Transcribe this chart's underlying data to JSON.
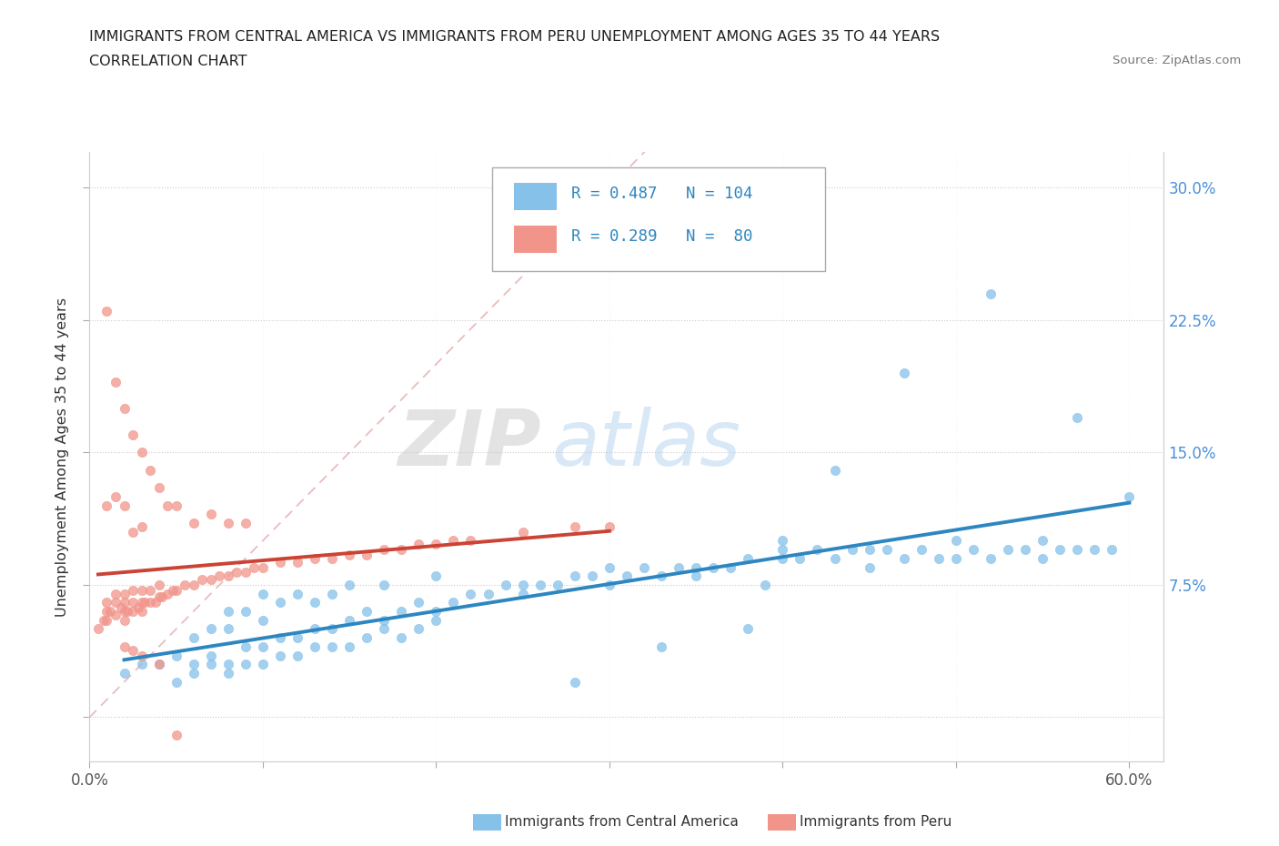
{
  "title_line1": "IMMIGRANTS FROM CENTRAL AMERICA VS IMMIGRANTS FROM PERU UNEMPLOYMENT AMONG AGES 35 TO 44 YEARS",
  "title_line2": "CORRELATION CHART",
  "source_text": "Source: ZipAtlas.com",
  "ylabel": "Unemployment Among Ages 35 to 44 years",
  "watermark_ZIP": "ZIP",
  "watermark_atlas": "atlas",
  "legend_label1": "Immigrants from Central America",
  "legend_label2": "Immigrants from Peru",
  "R1": 0.487,
  "N1": 104,
  "R2": 0.289,
  "N2": 80,
  "color1": "#85C1E9",
  "color2": "#F1948A",
  "line1_color": "#2E86C1",
  "line2_color": "#CB4335",
  "diag_color": "#E8B4B8",
  "xlim": [
    0.0,
    0.62
  ],
  "ylim": [
    -0.025,
    0.32
  ],
  "xtick_vals": [
    0.0,
    0.1,
    0.2,
    0.3,
    0.4,
    0.5,
    0.6
  ],
  "xtick_labels": [
    "0.0%",
    "",
    "",
    "",
    "",
    "",
    "60.0%"
  ],
  "ytick_vals": [
    0.0,
    0.075,
    0.15,
    0.225,
    0.3
  ],
  "ytick_labels": [
    "",
    "7.5%",
    "15.0%",
    "22.5%",
    "30.0%"
  ],
  "blue_x": [
    0.02,
    0.03,
    0.04,
    0.05,
    0.06,
    0.06,
    0.07,
    0.07,
    0.08,
    0.08,
    0.08,
    0.09,
    0.09,
    0.1,
    0.1,
    0.1,
    0.11,
    0.11,
    0.12,
    0.12,
    0.13,
    0.13,
    0.14,
    0.14,
    0.15,
    0.15,
    0.16,
    0.17,
    0.17,
    0.18,
    0.19,
    0.2,
    0.2,
    0.21,
    0.22,
    0.23,
    0.24,
    0.25,
    0.26,
    0.27,
    0.28,
    0.29,
    0.3,
    0.31,
    0.32,
    0.33,
    0.34,
    0.35,
    0.36,
    0.37,
    0.38,
    0.39,
    0.4,
    0.4,
    0.41,
    0.42,
    0.43,
    0.44,
    0.45,
    0.46,
    0.47,
    0.48,
    0.49,
    0.5,
    0.51,
    0.52,
    0.53,
    0.54,
    0.55,
    0.56,
    0.57,
    0.58,
    0.59,
    0.6,
    0.05,
    0.06,
    0.07,
    0.08,
    0.09,
    0.1,
    0.11,
    0.12,
    0.13,
    0.14,
    0.15,
    0.16,
    0.17,
    0.18,
    0.19,
    0.2,
    0.25,
    0.3,
    0.35,
    0.4,
    0.45,
    0.5,
    0.55,
    0.47,
    0.52,
    0.57,
    0.43,
    0.38,
    0.33,
    0.28
  ],
  "blue_y": [
    0.025,
    0.03,
    0.03,
    0.035,
    0.03,
    0.045,
    0.035,
    0.05,
    0.03,
    0.05,
    0.06,
    0.04,
    0.06,
    0.04,
    0.055,
    0.07,
    0.045,
    0.065,
    0.045,
    0.07,
    0.05,
    0.065,
    0.05,
    0.07,
    0.055,
    0.075,
    0.06,
    0.055,
    0.075,
    0.06,
    0.065,
    0.06,
    0.08,
    0.065,
    0.07,
    0.07,
    0.075,
    0.07,
    0.075,
    0.075,
    0.08,
    0.08,
    0.075,
    0.08,
    0.085,
    0.08,
    0.085,
    0.08,
    0.085,
    0.085,
    0.09,
    0.075,
    0.09,
    0.1,
    0.09,
    0.095,
    0.09,
    0.095,
    0.085,
    0.095,
    0.09,
    0.095,
    0.09,
    0.09,
    0.095,
    0.09,
    0.095,
    0.095,
    0.09,
    0.095,
    0.095,
    0.095,
    0.095,
    0.125,
    0.02,
    0.025,
    0.03,
    0.025,
    0.03,
    0.03,
    0.035,
    0.035,
    0.04,
    0.04,
    0.04,
    0.045,
    0.05,
    0.045,
    0.05,
    0.055,
    0.075,
    0.085,
    0.085,
    0.095,
    0.095,
    0.1,
    0.1,
    0.195,
    0.24,
    0.17,
    0.14,
    0.05,
    0.04,
    0.02
  ],
  "pink_x": [
    0.005,
    0.008,
    0.01,
    0.01,
    0.01,
    0.012,
    0.015,
    0.015,
    0.015,
    0.018,
    0.02,
    0.02,
    0.02,
    0.02,
    0.022,
    0.025,
    0.025,
    0.025,
    0.028,
    0.03,
    0.03,
    0.03,
    0.032,
    0.035,
    0.035,
    0.038,
    0.04,
    0.04,
    0.042,
    0.045,
    0.048,
    0.05,
    0.055,
    0.06,
    0.065,
    0.07,
    0.075,
    0.08,
    0.085,
    0.09,
    0.095,
    0.1,
    0.11,
    0.12,
    0.13,
    0.14,
    0.15,
    0.16,
    0.17,
    0.18,
    0.19,
    0.2,
    0.21,
    0.22,
    0.25,
    0.28,
    0.3,
    0.01,
    0.015,
    0.02,
    0.025,
    0.03,
    0.035,
    0.04,
    0.045,
    0.05,
    0.06,
    0.07,
    0.08,
    0.09,
    0.01,
    0.015,
    0.02,
    0.025,
    0.03,
    0.02,
    0.025,
    0.03,
    0.04,
    0.05
  ],
  "pink_y": [
    0.05,
    0.055,
    0.055,
    0.06,
    0.065,
    0.06,
    0.058,
    0.065,
    0.07,
    0.062,
    0.055,
    0.06,
    0.065,
    0.07,
    0.06,
    0.06,
    0.065,
    0.072,
    0.062,
    0.06,
    0.065,
    0.072,
    0.065,
    0.065,
    0.072,
    0.065,
    0.068,
    0.075,
    0.068,
    0.07,
    0.072,
    0.072,
    0.075,
    0.075,
    0.078,
    0.078,
    0.08,
    0.08,
    0.082,
    0.082,
    0.085,
    0.085,
    0.088,
    0.088,
    0.09,
    0.09,
    0.092,
    0.092,
    0.095,
    0.095,
    0.098,
    0.098,
    0.1,
    0.1,
    0.105,
    0.108,
    0.108,
    0.23,
    0.19,
    0.175,
    0.16,
    0.15,
    0.14,
    0.13,
    0.12,
    0.12,
    0.11,
    0.115,
    0.11,
    0.11,
    0.12,
    0.125,
    0.12,
    0.105,
    0.108,
    0.04,
    0.038,
    0.035,
    0.03,
    -0.01
  ]
}
